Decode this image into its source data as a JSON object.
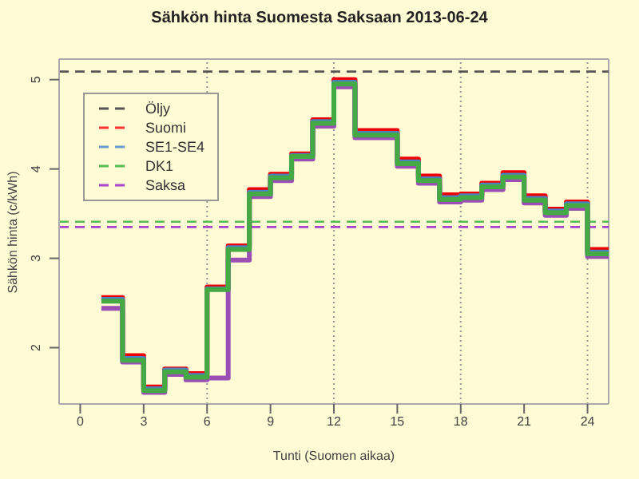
{
  "chart_data": {
    "type": "step",
    "title": "Sähkön hinta Suomesta Saksaan 2013-06-24",
    "xlabel": "Tunti (Suomen aikaa)",
    "ylabel": "Sähkön hinta (c/kWh)",
    "xlim": [
      -1,
      25
    ],
    "xticks": [
      0,
      3,
      6,
      9,
      12,
      15,
      18,
      21,
      24
    ],
    "ylim": [
      1.37,
      5.23
    ],
    "yticks": [
      2,
      3,
      4,
      5
    ],
    "legend": "top left",
    "grid": false,
    "ref_lines": [
      {
        "axis": "x",
        "value": 6,
        "color": "#999999",
        "line_style": "dotted"
      },
      {
        "axis": "x",
        "value": 12,
        "color": "#999999",
        "line_style": "dotted"
      },
      {
        "axis": "x",
        "value": 18,
        "color": "#999999",
        "line_style": "dotted"
      },
      {
        "axis": "x",
        "value": 24,
        "color": "#999999",
        "line_style": "dotted"
      }
    ],
    "series": [
      {
        "name": "Öljy",
        "type": "line",
        "line_style": "dashed",
        "color": "#555555",
        "x": [
          -1,
          25
        ],
        "values": [
          5.09,
          5.09
        ]
      },
      {
        "name": "Suomi",
        "type": "line",
        "line_style": "dashed",
        "color": "#ff3333",
        "values": [
          null,
          null
        ]
      },
      {
        "name": "SE1-SE4",
        "type": "line",
        "line_style": "dashed",
        "color": "#6699cc",
        "values": [
          null,
          null
        ]
      },
      {
        "name": "DK1",
        "type": "line",
        "line_style": "dashed",
        "color": "#55bb55",
        "x": [
          -1,
          25
        ],
        "values": [
          3.41,
          3.41
        ]
      },
      {
        "name": "Saksa",
        "type": "line",
        "line_style": "dashed",
        "color": "#aa44cc",
        "x": [
          -1,
          25
        ],
        "values": [
          3.35,
          3.35
        ]
      },
      {
        "color": "#ee0000",
        "x": [
          1,
          2,
          3,
          4,
          5,
          6,
          7,
          8,
          9,
          10,
          11,
          12,
          13,
          14,
          15,
          16,
          17,
          18,
          19,
          20,
          21,
          22,
          23,
          24,
          25
        ],
        "values": [
          2.56,
          1.91,
          1.56,
          1.76,
          1.71,
          2.68,
          3.14,
          3.77,
          3.94,
          4.17,
          4.55,
          5.0,
          4.43,
          4.43,
          4.11,
          3.92,
          3.71,
          3.72,
          3.84,
          3.96,
          3.7,
          3.55,
          3.63,
          3.1,
          3.1
        ]
      },
      {
        "color": "#4f81bd",
        "x": [
          1,
          2,
          3,
          4,
          5,
          6,
          7,
          8,
          9,
          10,
          11,
          12,
          13,
          14,
          15,
          16,
          17,
          18,
          19,
          20,
          21,
          22,
          23,
          24,
          25
        ],
        "values": [
          2.54,
          1.88,
          1.54,
          1.75,
          1.69,
          2.66,
          3.12,
          3.74,
          3.92,
          4.15,
          4.53,
          4.97,
          4.4,
          4.4,
          4.08,
          3.89,
          3.68,
          3.7,
          3.82,
          3.93,
          3.67,
          3.53,
          3.61,
          3.07,
          3.07
        ]
      },
      {
        "color": "#9b4fb5",
        "x": [
          1,
          2,
          3,
          4,
          5,
          6,
          7,
          8,
          9,
          10,
          11,
          12,
          13,
          14,
          15,
          16,
          17,
          18,
          19,
          20,
          21,
          22,
          23,
          24,
          25
        ],
        "values": [
          2.44,
          1.84,
          1.5,
          1.7,
          1.64,
          1.66,
          2.98,
          3.69,
          3.87,
          4.11,
          4.48,
          4.92,
          4.35,
          4.35,
          4.03,
          3.84,
          3.63,
          3.65,
          3.77,
          3.88,
          3.62,
          3.48,
          3.56,
          3.02,
          3.02
        ]
      },
      {
        "color": "#44aa44",
        "x": [
          1,
          2,
          3,
          4,
          5,
          6,
          7,
          8,
          9,
          10,
          11,
          12,
          13,
          14,
          15,
          16,
          17,
          18,
          19,
          20,
          21,
          22,
          23,
          24,
          25
        ],
        "values": [
          2.52,
          1.86,
          1.52,
          1.73,
          1.67,
          2.65,
          3.1,
          3.72,
          3.9,
          4.14,
          4.51,
          4.95,
          4.38,
          4.38,
          4.06,
          3.87,
          3.66,
          3.68,
          3.8,
          3.91,
          3.65,
          3.51,
          3.59,
          3.05,
          3.05
        ]
      }
    ]
  }
}
